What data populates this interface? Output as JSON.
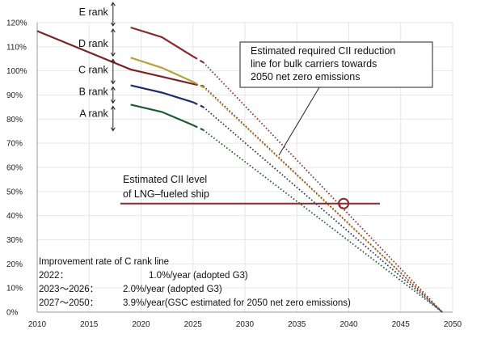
{
  "chart_data": {
    "type": "line",
    "xlim": [
      2010,
      2050
    ],
    "ylim": [
      0,
      120
    ],
    "x_ticks": [
      "2010",
      "2015",
      "2020",
      "2025",
      "2030",
      "2035",
      "2040",
      "2045",
      "2050"
    ],
    "y_ticks": [
      "0%",
      "10%",
      "20%",
      "30%",
      "40%",
      "50%",
      "60%",
      "70%",
      "80%",
      "90%",
      "100%",
      "110%",
      "120%"
    ],
    "grid": true,
    "series": [
      {
        "color": "#7a2424",
        "points": [
          [
            2010,
            116.5
          ],
          [
            2019,
            100.6
          ],
          [
            2022,
            97.6
          ],
          [
            2025,
            94.6
          ],
          [
            2026,
            93.7
          ],
          [
            2049,
            0
          ]
        ]
      },
      {
        "color": "#8b2a2a",
        "points": [
          [
            2019,
            118
          ],
          [
            2022,
            114
          ],
          [
            2025,
            106
          ],
          [
            2026,
            103.5
          ],
          [
            2049,
            0
          ]
        ]
      },
      {
        "color": "#b8a137",
        "points": [
          [
            2019,
            105.5
          ],
          [
            2022,
            101.3
          ],
          [
            2025,
            95.5
          ],
          [
            2026,
            93.2
          ],
          [
            2049,
            0
          ]
        ]
      },
      {
        "color": "#1f2d6b",
        "points": [
          [
            2019,
            94
          ],
          [
            2022,
            91
          ],
          [
            2025,
            87
          ],
          [
            2026,
            85
          ],
          [
            2049,
            0
          ]
        ]
      },
      {
        "color": "#1d5b33",
        "points": [
          [
            2019,
            86
          ],
          [
            2022,
            83
          ],
          [
            2025,
            77.5
          ],
          [
            2026,
            75.5
          ],
          [
            2049,
            0
          ]
        ]
      }
    ],
    "ranks": [
      {
        "label": "E rank",
        "y": 124.5
      },
      {
        "label": "D rank",
        "y": 111.5
      },
      {
        "label": "C rank",
        "y": 100.5
      },
      {
        "label": "B rank",
        "y": 91.5
      },
      {
        "label": "A rank",
        "y": 82.5
      }
    ],
    "rank_bounds": [
      118,
      105.5,
      94,
      86,
      74.5
    ],
    "lng_line": {
      "y": 45,
      "x_start": 2018,
      "x_end": 2043,
      "color": "#8b2a2a",
      "marker_x": 2039.5
    },
    "annotations": {
      "lng_label": [
        "Estimated CII level",
        "of LNG–fueled ship"
      ],
      "bulk_label": [
        "Estimated required CII reduction",
        "line for bulk carriers towards",
        "2050 net zero emissions"
      ],
      "improvement_title": "Improvement rate of C rank line",
      "improvement_rows": [
        {
          "period": "2022：",
          "rate": "1.0%/year (adopted G3)"
        },
        {
          "period": "2023〜2026：",
          "rate": "2.0%/year (adopted G3)"
        },
        {
          "period": "2027〜2050：",
          "rate": "3.9%/year(GSC estimated for 2050 net zero emissions)"
        }
      ]
    }
  }
}
